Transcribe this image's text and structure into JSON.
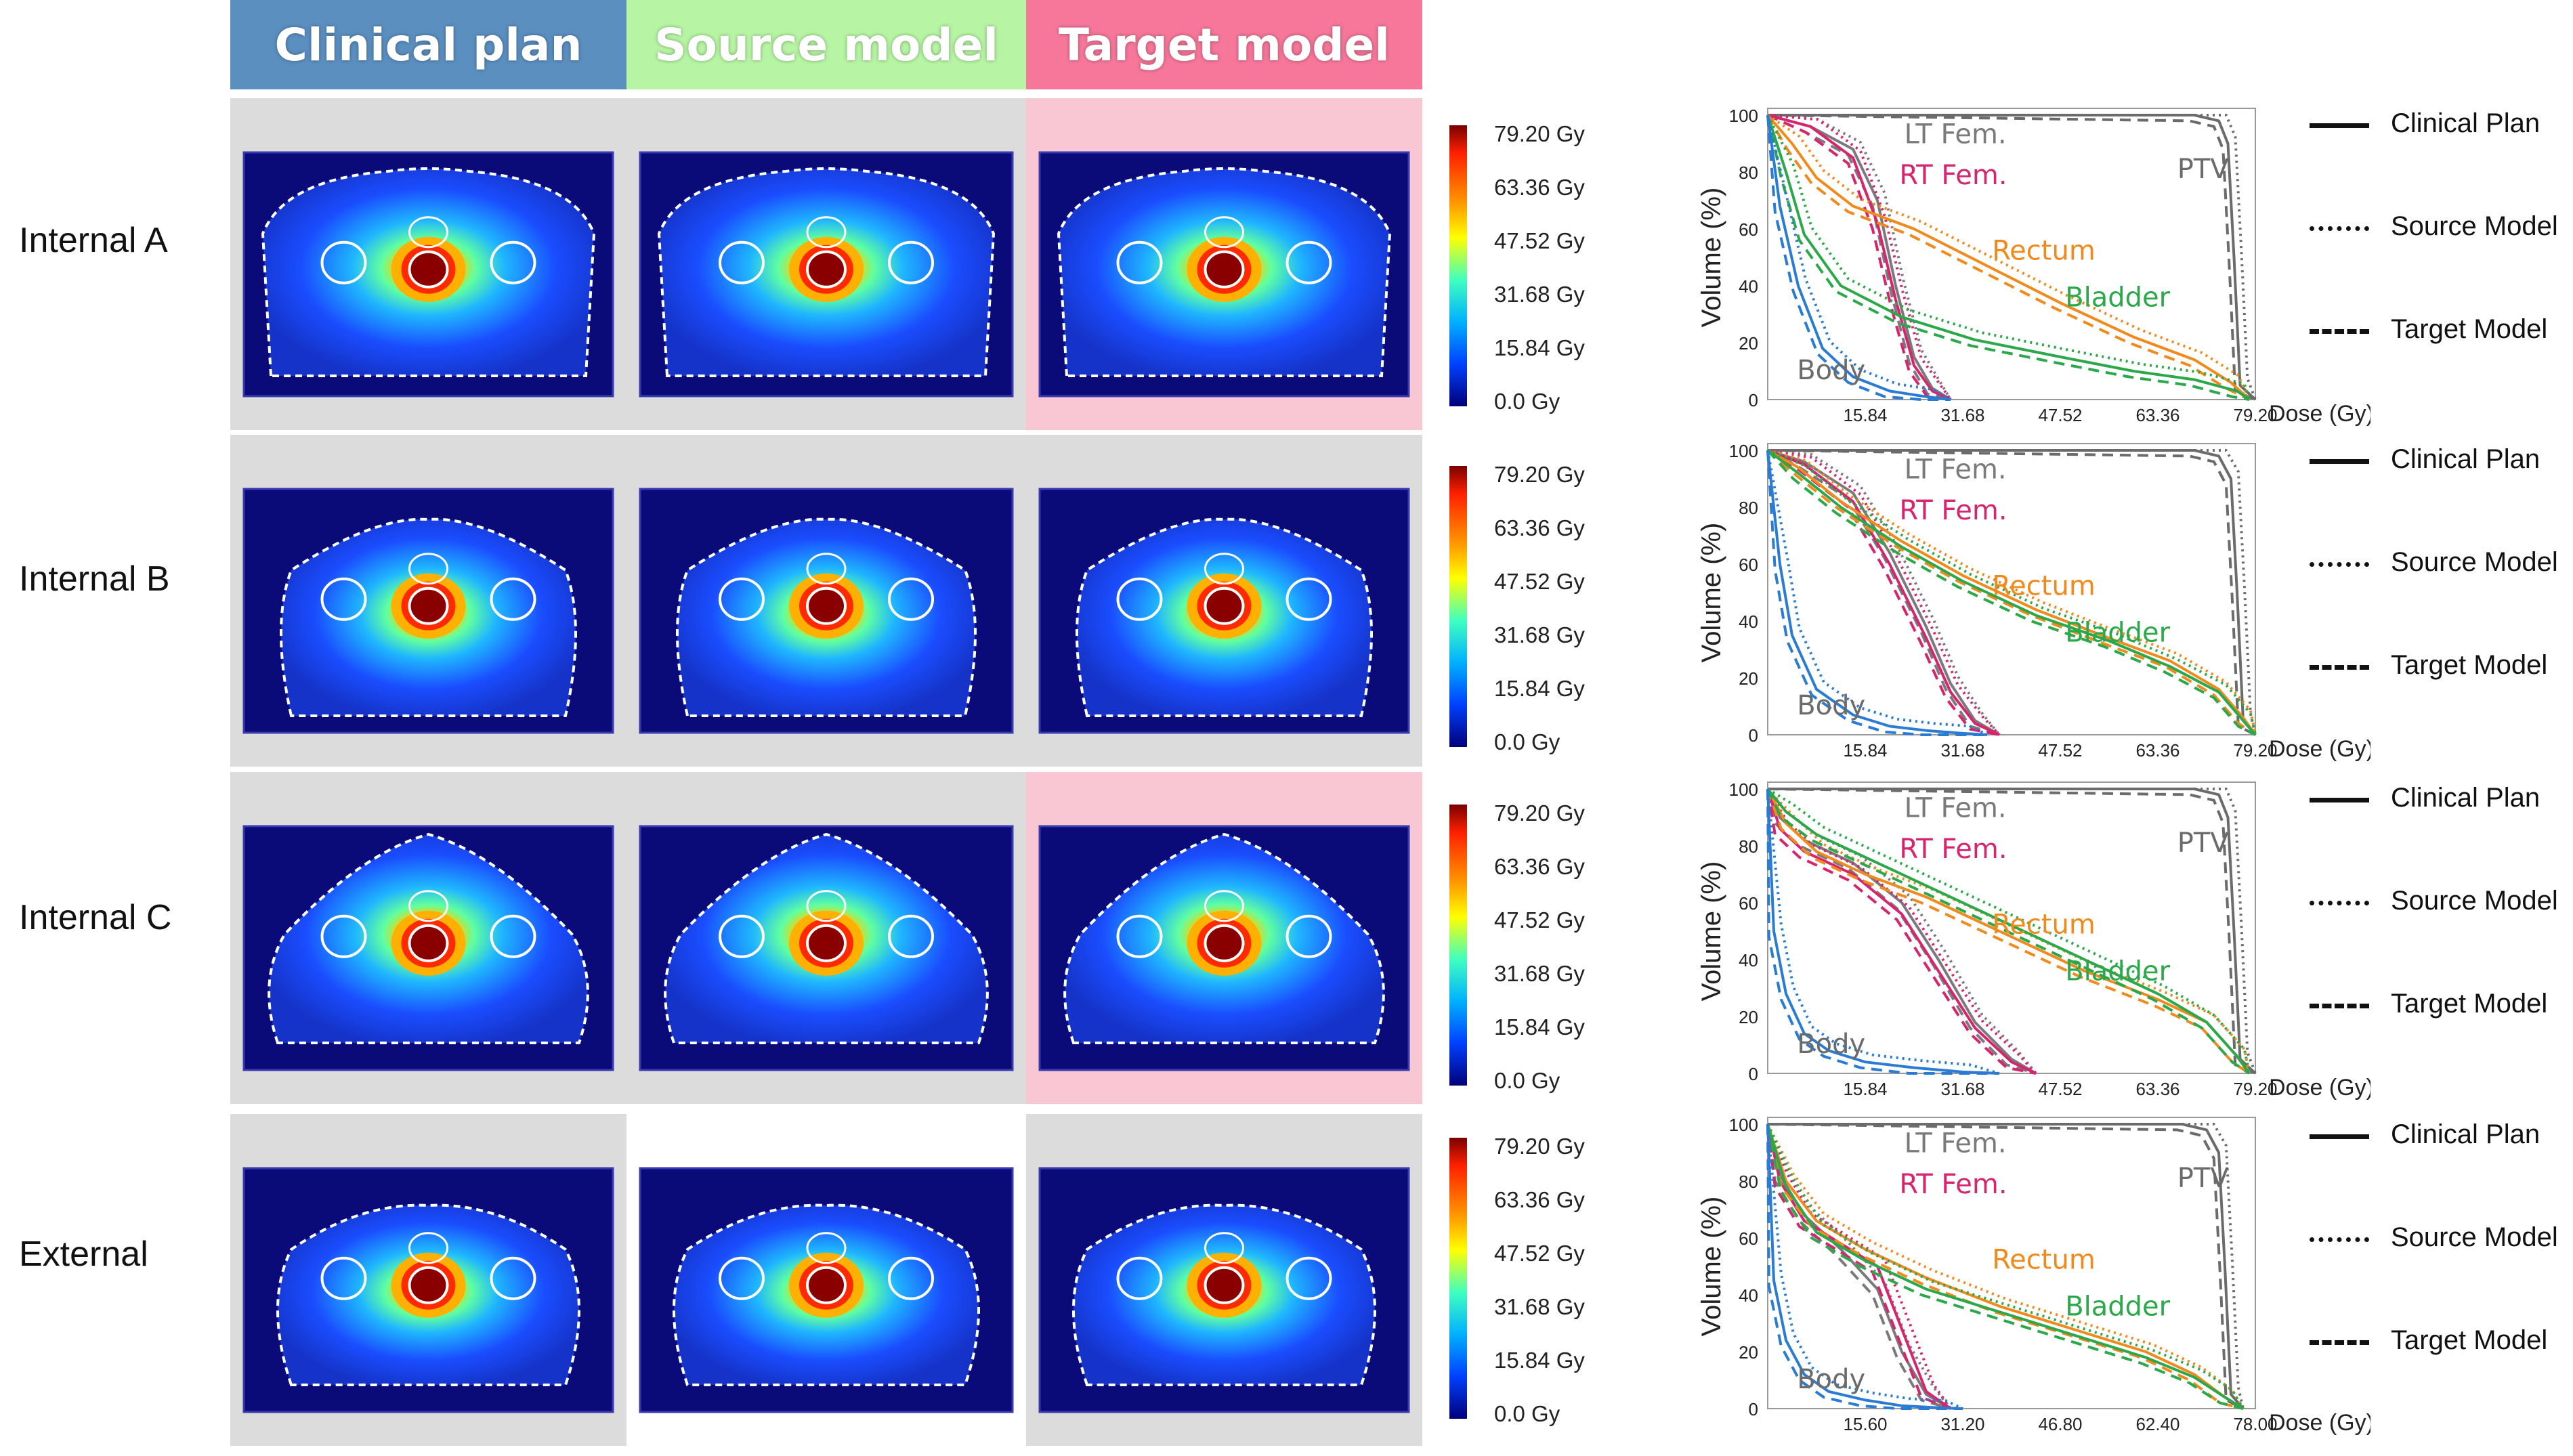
{
  "headers": [
    {
      "label": "Clinical plan",
      "color": "#5b8fc0"
    },
    {
      "label": "Source model",
      "color": "#b7f5a4"
    },
    {
      "label": "Target model",
      "color": "#f6779a"
    }
  ],
  "rows": [
    {
      "label": "Internal A",
      "cell_bg": [
        "#dcdcdc",
        "#dcdcdc",
        "#f9c7d3"
      ],
      "colorbar": [
        "79.20 Gy",
        "63.36 Gy",
        "47.52 Gy",
        "31.68 Gy",
        "15.84 Gy",
        "0.0 Gy"
      ]
    },
    {
      "label": "Internal B",
      "cell_bg": [
        "#dcdcdc",
        "#dcdcdc",
        "#dcdcdc"
      ],
      "colorbar": [
        "79.20 Gy",
        "63.36 Gy",
        "47.52 Gy",
        "31.68 Gy",
        "15.84 Gy",
        "0.0 Gy"
      ]
    },
    {
      "label": "Internal C",
      "cell_bg": [
        "#dcdcdc",
        "#dcdcdc",
        "#f9c7d3"
      ],
      "colorbar": [
        "79.20 Gy",
        "63.36 Gy",
        "47.52 Gy",
        "31.68 Gy",
        "15.84 Gy",
        "0.0 Gy"
      ]
    },
    {
      "label": "External",
      "cell_bg": [
        "#dcdcdc",
        "#ffffff",
        "#dcdcdc"
      ],
      "colorbar": [
        "79.20 Gy",
        "63.36 Gy",
        "47.52 Gy",
        "31.68 Gy",
        "15.84 Gy",
        "0.0 Gy"
      ]
    }
  ],
  "legend": [
    {
      "label": "Clinical Plan",
      "style": "solid"
    },
    {
      "label": "Source Model",
      "style": "dotted"
    },
    {
      "label": "Target Model",
      "style": "dashed"
    }
  ],
  "structure_colors": {
    "PTV": "#6b6b6b",
    "LT Fem.": "#7a7a7a",
    "RT Fem.": "#d6246e",
    "Rectum": "#f08a1c",
    "Bladder": "#2aa84a",
    "Body": "#2a7bd4"
  },
  "chart_data": [
    {
      "type": "line",
      "panel": "Internal A",
      "ylabel": "Volume (%)",
      "xlabel": "Dose (Gy)",
      "xlim": [
        0,
        80
      ],
      "ylim": [
        0,
        100
      ],
      "x_ticks": [
        "15.84",
        "31.68",
        "47.52",
        "63.36",
        "79.20"
      ],
      "y_ticks": [
        "0",
        "20",
        "40",
        "60",
        "80",
        "100"
      ],
      "annotations": [
        "LT Fem.",
        "RT Fem.",
        "PTV",
        "Rectum",
        "Bladder",
        "Body"
      ],
      "series": [
        {
          "name": "PTV",
          "x": [
            0,
            70,
            74,
            75.5,
            76.5,
            77.5,
            80
          ],
          "y": [
            100,
            100,
            98,
            90,
            50,
            5,
            0
          ]
        },
        {
          "name": "LT Fem.",
          "x": [
            0,
            7,
            14,
            18,
            21,
            24,
            27,
            30
          ],
          "y": [
            100,
            96,
            88,
            70,
            40,
            15,
            4,
            0
          ]
        },
        {
          "name": "RT Fem.",
          "x": [
            0,
            7,
            14,
            18,
            21,
            24,
            27,
            30
          ],
          "y": [
            100,
            96,
            85,
            62,
            35,
            12,
            3,
            0
          ]
        },
        {
          "name": "Rectum",
          "x": [
            0,
            4,
            8,
            14,
            24,
            36,
            48,
            60,
            70,
            76,
            79
          ],
          "y": [
            100,
            90,
            78,
            68,
            60,
            47,
            34,
            22,
            14,
            6,
            0
          ]
        },
        {
          "name": "Bladder",
          "x": [
            0,
            3,
            6,
            12,
            22,
            34,
            48,
            60,
            70,
            77,
            79
          ],
          "y": [
            100,
            80,
            58,
            40,
            29,
            21,
            15,
            10,
            7,
            3,
            0
          ]
        },
        {
          "name": "Body",
          "x": [
            0,
            2,
            5,
            9,
            14,
            20,
            26,
            30
          ],
          "y": [
            100,
            68,
            40,
            18,
            8,
            3,
            1,
            0
          ]
        }
      ]
    },
    {
      "type": "line",
      "panel": "Internal B",
      "ylabel": "Volume (%)",
      "xlabel": "Dose (Gy)",
      "xlim": [
        0,
        80
      ],
      "ylim": [
        0,
        100
      ],
      "x_ticks": [
        "15.84",
        "31.68",
        "47.52",
        "63.36",
        "79.20"
      ],
      "y_ticks": [
        "0",
        "20",
        "40",
        "60",
        "80",
        "100"
      ],
      "annotations": [
        "LT Fem.",
        "RT Fem.",
        "Rectum",
        "Bladder",
        "Body"
      ],
      "series": [
        {
          "name": "PTV",
          "x": [
            0,
            70,
            74,
            76,
            77,
            78,
            80
          ],
          "y": [
            100,
            100,
            98,
            90,
            50,
            5,
            0
          ]
        },
        {
          "name": "LT Fem.",
          "x": [
            0,
            6,
            14,
            20,
            26,
            30,
            34,
            38
          ],
          "y": [
            100,
            96,
            85,
            64,
            38,
            18,
            5,
            0
          ]
        },
        {
          "name": "RT Fem.",
          "x": [
            0,
            6,
            14,
            20,
            26,
            30,
            34,
            38
          ],
          "y": [
            100,
            95,
            82,
            60,
            34,
            15,
            4,
            0
          ]
        },
        {
          "name": "Rectum",
          "x": [
            0,
            5,
            12,
            22,
            32,
            44,
            56,
            66,
            74,
            78,
            80
          ],
          "y": [
            100,
            94,
            82,
            68,
            56,
            44,
            34,
            26,
            16,
            6,
            0
          ]
        },
        {
          "name": "Bladder",
          "x": [
            0,
            5,
            12,
            22,
            32,
            44,
            56,
            66,
            74,
            78,
            80
          ],
          "y": [
            100,
            92,
            80,
            66,
            54,
            42,
            33,
            24,
            15,
            5,
            0
          ]
        },
        {
          "name": "Body",
          "x": [
            0,
            2,
            4,
            8,
            14,
            20,
            26,
            32,
            36
          ],
          "y": [
            100,
            60,
            35,
            16,
            7,
            3,
            1.5,
            0.5,
            0
          ]
        }
      ]
    },
    {
      "type": "line",
      "panel": "Internal C",
      "ylabel": "Volume (%)",
      "xlabel": "Dose (Gy)",
      "xlim": [
        0,
        80
      ],
      "ylim": [
        0,
        100
      ],
      "x_ticks": [
        "15.84",
        "31.68",
        "47.52",
        "63.36",
        "79.20"
      ],
      "y_ticks": [
        "0",
        "20",
        "40",
        "60",
        "80",
        "100"
      ],
      "annotations": [
        "LT Fem.",
        "RT Fem.",
        "PTV",
        "Rectum",
        "Bladder",
        "Body"
      ],
      "series": [
        {
          "name": "PTV",
          "x": [
            0,
            70,
            74,
            75.5,
            76.5,
            77.5,
            80
          ],
          "y": [
            100,
            100,
            98,
            90,
            50,
            5,
            0
          ]
        },
        {
          "name": "LT Fem.",
          "x": [
            0,
            2,
            6,
            14,
            22,
            28,
            34,
            40,
            44
          ],
          "y": [
            100,
            90,
            82,
            74,
            60,
            40,
            18,
            5,
            0
          ]
        },
        {
          "name": "RT Fem.",
          "x": [
            0,
            2,
            6,
            14,
            22,
            28,
            34,
            40,
            44
          ],
          "y": [
            100,
            86,
            78,
            70,
            56,
            36,
            16,
            4,
            0
          ]
        },
        {
          "name": "Rectum",
          "x": [
            0,
            3,
            8,
            16,
            26,
            38,
            52,
            64,
            72,
            77,
            79
          ],
          "y": [
            100,
            88,
            78,
            70,
            62,
            50,
            36,
            26,
            18,
            6,
            0
          ]
        },
        {
          "name": "Bladder",
          "x": [
            0,
            3,
            8,
            16,
            26,
            38,
            52,
            64,
            72,
            77,
            79
          ],
          "y": [
            100,
            92,
            84,
            76,
            66,
            54,
            40,
            28,
            18,
            6,
            0
          ]
        },
        {
          "name": "Body",
          "x": [
            0,
            1,
            3,
            6,
            10,
            16,
            24,
            32,
            38
          ],
          "y": [
            100,
            50,
            28,
            14,
            8,
            4,
            2,
            0.5,
            0
          ]
        }
      ]
    },
    {
      "type": "line",
      "panel": "External",
      "ylabel": "Volume (%)",
      "xlabel": "Dose (Gy)",
      "xlim": [
        0,
        80
      ],
      "ylim": [
        0,
        100
      ],
      "x_ticks": [
        "15.60",
        "31.20",
        "46.80",
        "62.40",
        "78.00"
      ],
      "y_ticks": [
        "0",
        "20",
        "40",
        "60",
        "80",
        "100"
      ],
      "annotations": [
        "LT Fem.",
        "RT Fem.",
        "PTV",
        "Rectum",
        "Bladder",
        "Body"
      ],
      "series": [
        {
          "name": "PTV",
          "x": [
            0,
            68,
            72,
            74,
            75,
            76,
            78
          ],
          "y": [
            100,
            100,
            98,
            90,
            50,
            5,
            0
          ]
        },
        {
          "name": "LT Fem.",
          "x": [
            0,
            2,
            6,
            12,
            18,
            22,
            26,
            30
          ],
          "y": [
            100,
            82,
            68,
            56,
            42,
            20,
            5,
            0
          ]
        },
        {
          "name": "RT Fem.",
          "x": [
            0,
            2,
            6,
            12,
            18,
            22,
            26,
            30
          ],
          "y": [
            100,
            80,
            66,
            58,
            50,
            28,
            6,
            0
          ]
        },
        {
          "name": "Rectum",
          "x": [
            0,
            3,
            8,
            16,
            26,
            38,
            50,
            62,
            70,
            75,
            78
          ],
          "y": [
            100,
            80,
            66,
            56,
            46,
            36,
            28,
            20,
            12,
            4,
            0
          ]
        },
        {
          "name": "Bladder",
          "x": [
            0,
            3,
            8,
            16,
            26,
            38,
            50,
            62,
            70,
            75,
            78
          ],
          "y": [
            100,
            78,
            62,
            52,
            42,
            34,
            26,
            18,
            11,
            4,
            0
          ]
        },
        {
          "name": "Body",
          "x": [
            0,
            1,
            3,
            6,
            10,
            16,
            22,
            28,
            32
          ],
          "y": [
            100,
            45,
            24,
            12,
            6,
            3,
            1,
            0.3,
            0
          ]
        }
      ]
    }
  ]
}
